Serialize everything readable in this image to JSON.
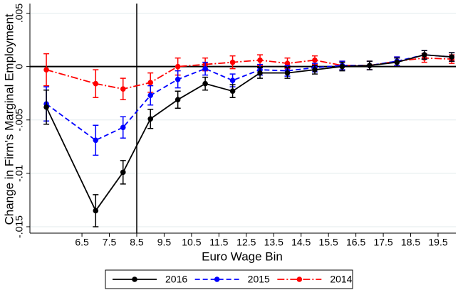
{
  "chart_data": {
    "type": "line",
    "x_label": "Euro Wage Bin",
    "y_label": "Change in Firm's Marginal Employment",
    "x": [
      5.2,
      7,
      8,
      9,
      10,
      11,
      12,
      13,
      14,
      15,
      16,
      17,
      18,
      19,
      20
    ],
    "xlim": [
      4.6,
      20.15
    ],
    "xticks": [
      6.5,
      7.5,
      8.5,
      9.5,
      10.5,
      11.5,
      12.5,
      13.5,
      14.5,
      15.5,
      16.5,
      17.5,
      18.5,
      19.5
    ],
    "ylim": [
      0.0059,
      -0.0156
    ],
    "yticks": [
      {
        "value": 0.005,
        "label": ".005"
      },
      0,
      {
        "value": -0.005,
        "label": "-.005"
      },
      {
        "value": -0.01,
        "label": "-.01"
      },
      {
        "value": -0.015,
        "label": "-.015"
      }
    ],
    "grid": true,
    "vline": 8.5,
    "hline": 0,
    "legend": "bottom",
    "series": [
      {
        "name": "2016",
        "color": "#000000",
        "dash": "solid",
        "values": [
          -0.0038,
          -0.0135,
          -0.0099,
          -0.0049,
          -0.0031,
          -0.0016,
          -0.0023,
          -0.0006,
          -0.0006,
          -0.0003,
          0,
          0.0001,
          0.0004,
          0.0011,
          0.0009
        ],
        "errors": [
          0.0016,
          0.0015,
          0.0011,
          0.0009,
          0.0008,
          0.0006,
          0.0006,
          0.0005,
          0.0005,
          0.0004,
          0.0004,
          0.0004,
          0.0004,
          0.0004,
          0.0004
        ]
      },
      {
        "name": "2015",
        "color": "#0000ff",
        "dash": "dashed",
        "values": [
          -0.0035,
          -0.0069,
          -0.0057,
          -0.0027,
          -0.0012,
          -0.0002,
          -0.0013,
          -0.0003,
          -0.0004,
          -0.0001,
          0.0001,
          0.0001,
          0.0005,
          0.0011,
          0.0009
        ],
        "errors": [
          0.0016,
          0.0014,
          0.001,
          0.0009,
          0.0008,
          0.0006,
          0.0006,
          0.0005,
          0.0005,
          0.0004,
          0.0004,
          0.0004,
          0.0004,
          0.0004,
          0.0004
        ]
      },
      {
        "name": "2014",
        "color": "#ff0000",
        "dash": "dashdot",
        "values": [
          -0.0003,
          -0.0016,
          -0.0021,
          -0.0015,
          0,
          0.0002,
          0.0004,
          0.0006,
          0.0003,
          0.0006,
          0.0001,
          0.0001,
          0.0005,
          0.0008,
          0.0007
        ],
        "errors": [
          0.0015,
          0.0013,
          0.001,
          0.0009,
          0.0008,
          0.0006,
          0.0006,
          0.0005,
          0.0005,
          0.0004,
          0.0004,
          0.0004,
          0.0004,
          0.0004,
          0.0004
        ]
      }
    ]
  }
}
